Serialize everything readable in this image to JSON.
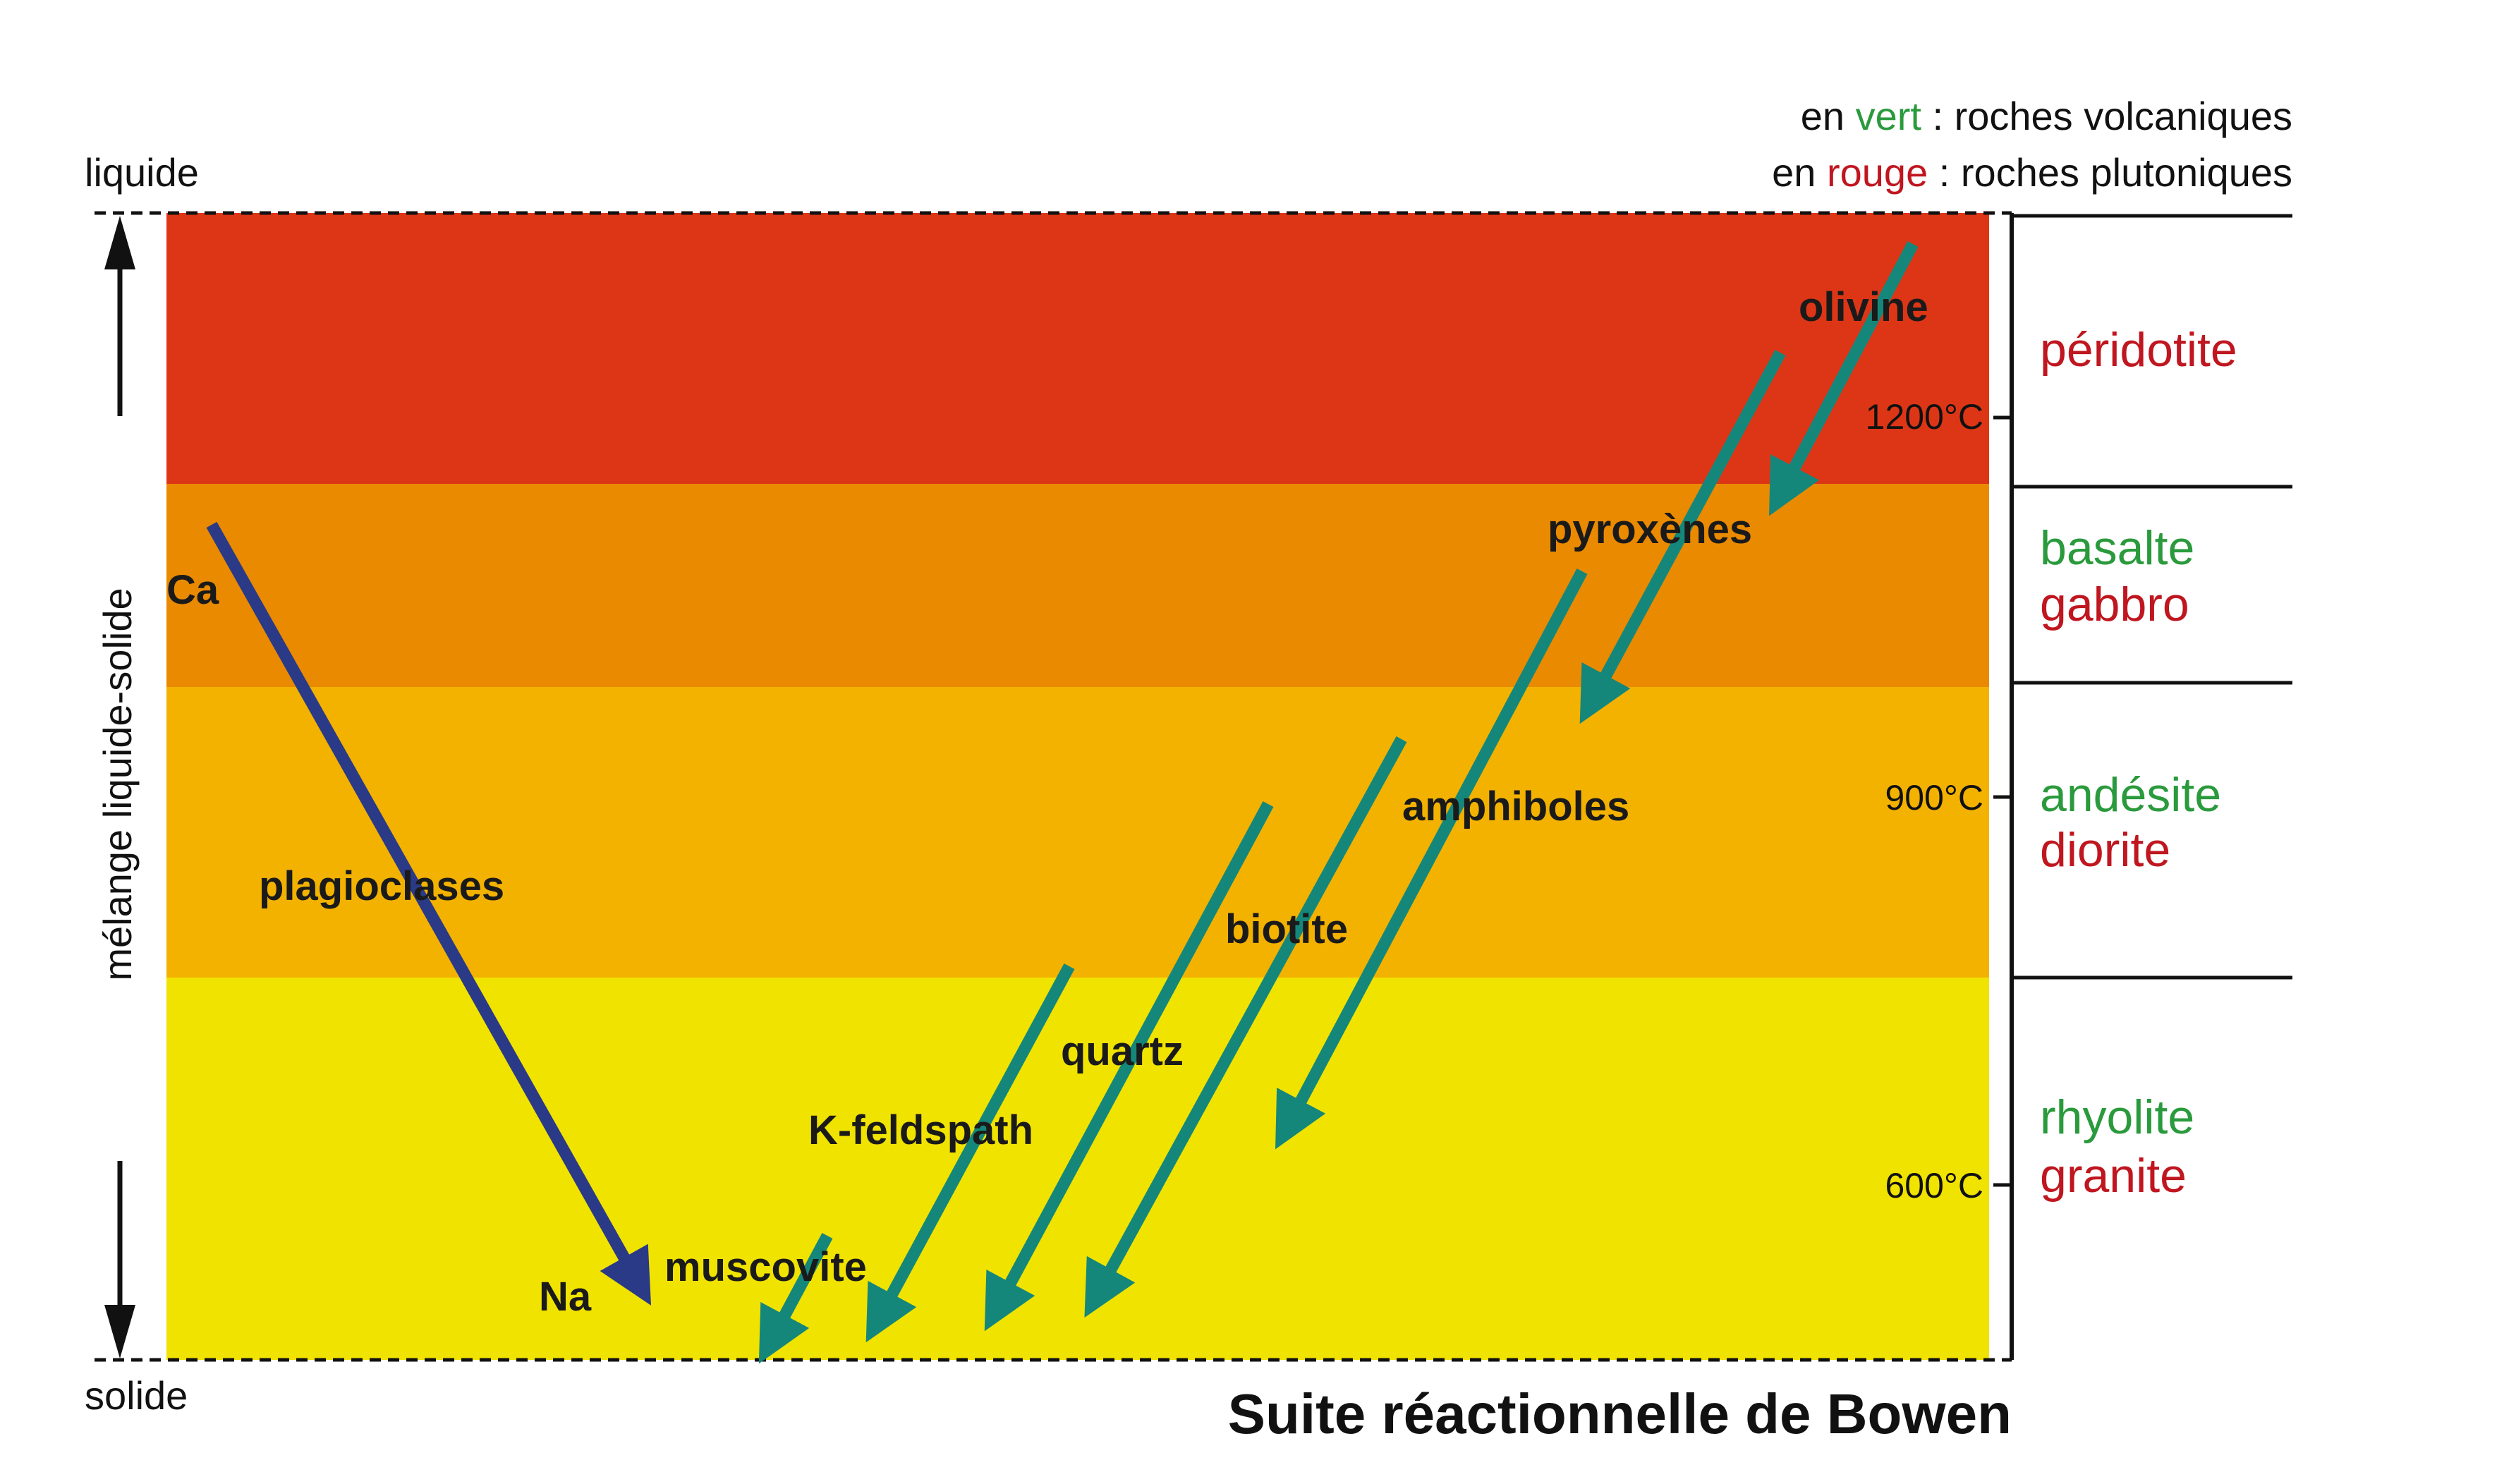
{
  "title": "Suite réactionnelle de Bowen",
  "legend": {
    "line1": {
      "prefix": "en ",
      "colored": "vert",
      "suffix": " : roches volcaniques"
    },
    "line2": {
      "prefix": "en ",
      "colored": "rouge",
      "suffix": " : roches plutoniques"
    }
  },
  "axis": {
    "top_label": "liquide",
    "bottom_label": "solide",
    "middle_label": "mélange liquide-solide"
  },
  "temperatures": [
    "1200°C",
    "900°C",
    "600°C"
  ],
  "rock_zones": [
    {
      "volcanic": "",
      "plutonic": "péridotite",
      "band_color": "#dd3617"
    },
    {
      "volcanic": "basalte",
      "plutonic": "gabbro",
      "band_color": "#ea8a00"
    },
    {
      "volcanic": "andésite",
      "plutonic": "diorite",
      "band_color": "#f3b200"
    },
    {
      "volcanic": "rhyolite",
      "plutonic": "granite",
      "band_color": "#f1e300"
    }
  ],
  "discontinuous_series": [
    "olivine",
    "pyroxènes",
    "amphiboles",
    "biotite"
  ],
  "continuous_series": {
    "name": "plagioclases",
    "start": "Ca",
    "end": "Na"
  },
  "final_minerals": [
    "K-feldspath",
    "muscovite",
    "quartz"
  ],
  "colors": {
    "volcanic": "#2a9a3c",
    "plutonic": "#c0161f",
    "arrow_green": "#14877a",
    "arrow_blue": "#2a3a86"
  }
}
